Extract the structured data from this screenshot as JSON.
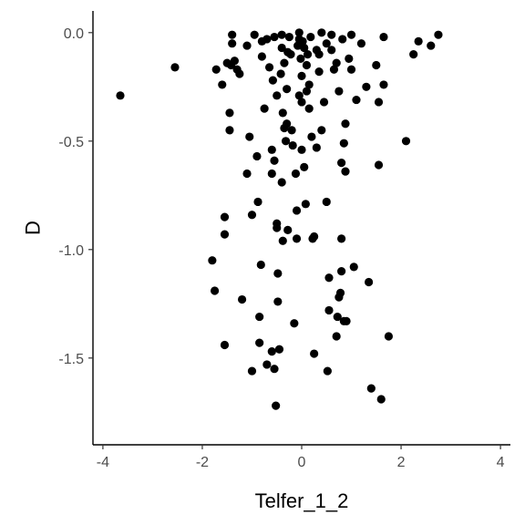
{
  "chart_data": {
    "type": "scatter",
    "title": "",
    "xlabel": "Telfer_1_2",
    "ylabel": "D",
    "xlim": [
      -4.2,
      4.2
    ],
    "ylim": [
      -1.9,
      0.1
    ],
    "xticks": [
      -4,
      -2,
      0,
      2,
      4
    ],
    "xtick_labels": [
      "-4",
      "-2",
      "0",
      "2",
      "4"
    ],
    "yticks": [
      0.0,
      -0.5,
      -1.0,
      -1.5
    ],
    "ytick_labels": [
      "0.0",
      "-0.5",
      "-1.0",
      "-1.5"
    ],
    "grid": false,
    "point_color": "#000000",
    "points": [
      [
        -3.65,
        -0.29
      ],
      [
        -2.55,
        -0.16
      ],
      [
        -1.8,
        -1.05
      ],
      [
        -1.75,
        -1.19
      ],
      [
        -1.72,
        -0.17
      ],
      [
        -1.6,
        -0.24
      ],
      [
        -1.55,
        -1.44
      ],
      [
        -1.55,
        -0.85
      ],
      [
        -1.55,
        -0.93
      ],
      [
        -1.5,
        -0.14
      ],
      [
        -1.45,
        -0.37
      ],
      [
        -1.45,
        -0.45
      ],
      [
        -1.42,
        -0.15
      ],
      [
        -1.4,
        -0.01
      ],
      [
        -1.4,
        -0.05
      ],
      [
        -1.35,
        -0.13
      ],
      [
        -1.3,
        -0.17
      ],
      [
        -1.25,
        -0.19
      ],
      [
        -1.2,
        -1.23
      ],
      [
        -1.1,
        -0.06
      ],
      [
        -1.1,
        -0.65
      ],
      [
        -1.05,
        -0.48
      ],
      [
        -1.0,
        -1.56
      ],
      [
        -1.0,
        -0.84
      ],
      [
        -0.95,
        -0.01
      ],
      [
        -0.9,
        -0.57
      ],
      [
        -0.88,
        -0.78
      ],
      [
        -0.85,
        -1.43
      ],
      [
        -0.85,
        -1.31
      ],
      [
        -0.82,
        -1.07
      ],
      [
        -0.8,
        -0.04
      ],
      [
        -0.8,
        -0.11
      ],
      [
        -0.75,
        -0.35
      ],
      [
        -0.7,
        -1.53
      ],
      [
        -0.7,
        -0.03
      ],
      [
        -0.65,
        -0.16
      ],
      [
        -0.6,
        -1.47
      ],
      [
        -0.6,
        -0.54
      ],
      [
        -0.6,
        -0.65
      ],
      [
        -0.58,
        -0.22
      ],
      [
        -0.55,
        -0.59
      ],
      [
        -0.55,
        -0.02
      ],
      [
        -0.55,
        -1.55
      ],
      [
        -0.52,
        -1.72
      ],
      [
        -0.5,
        -0.9
      ],
      [
        -0.5,
        -0.88
      ],
      [
        -0.5,
        -0.29
      ],
      [
        -0.48,
        -1.11
      ],
      [
        -0.48,
        -1.24
      ],
      [
        -0.45,
        -1.46
      ],
      [
        -0.42,
        -0.19
      ],
      [
        -0.4,
        -0.01
      ],
      [
        -0.4,
        -0.07
      ],
      [
        -0.4,
        -0.69
      ],
      [
        -0.38,
        -0.96
      ],
      [
        -0.38,
        -0.37
      ],
      [
        -0.35,
        -0.14
      ],
      [
        -0.35,
        -0.44
      ],
      [
        -0.32,
        -0.5
      ],
      [
        -0.3,
        -0.42
      ],
      [
        -0.3,
        -0.26
      ],
      [
        -0.28,
        -0.91
      ],
      [
        -0.28,
        -0.09
      ],
      [
        -0.25,
        -0.02
      ],
      [
        -0.22,
        -0.1
      ],
      [
        -0.2,
        -0.45
      ],
      [
        -0.18,
        -0.52
      ],
      [
        -0.15,
        -1.34
      ],
      [
        -0.12,
        -0.65
      ],
      [
        -0.1,
        -0.82
      ],
      [
        -0.1,
        -0.95
      ],
      [
        -0.08,
        -0.06
      ],
      [
        -0.05,
        -0.03
      ],
      [
        -0.05,
        -0.29
      ],
      [
        -0.05,
        0.0
      ],
      [
        -0.02,
        -0.12
      ],
      [
        0.0,
        -0.32
      ],
      [
        0.0,
        -0.54
      ],
      [
        0.0,
        -0.2
      ],
      [
        0.02,
        -0.04
      ],
      [
        0.05,
        -0.62
      ],
      [
        0.05,
        -0.07
      ],
      [
        0.08,
        -0.79
      ],
      [
        0.1,
        -0.27
      ],
      [
        0.1,
        -0.15
      ],
      [
        0.12,
        -0.1
      ],
      [
        0.15,
        -0.24
      ],
      [
        0.15,
        -0.35
      ],
      [
        0.18,
        -0.02
      ],
      [
        0.2,
        -0.48
      ],
      [
        0.22,
        -0.95
      ],
      [
        0.25,
        -1.48
      ],
      [
        0.25,
        -0.94
      ],
      [
        0.3,
        -0.53
      ],
      [
        0.3,
        -0.08
      ],
      [
        0.35,
        -0.18
      ],
      [
        0.35,
        -0.1
      ],
      [
        0.4,
        0.0
      ],
      [
        0.4,
        -0.45
      ],
      [
        0.45,
        -0.32
      ],
      [
        0.5,
        -0.78
      ],
      [
        0.5,
        -0.05
      ],
      [
        0.52,
        -1.56
      ],
      [
        0.55,
        -1.28
      ],
      [
        0.55,
        -1.13
      ],
      [
        0.6,
        -0.08
      ],
      [
        0.6,
        -0.01
      ],
      [
        0.65,
        -0.17
      ],
      [
        0.7,
        -0.14
      ],
      [
        0.7,
        -1.4
      ],
      [
        0.72,
        -1.31
      ],
      [
        0.75,
        -0.27
      ],
      [
        0.75,
        -1.22
      ],
      [
        0.78,
        -1.2
      ],
      [
        0.8,
        -1.1
      ],
      [
        0.8,
        -0.6
      ],
      [
        0.8,
        -0.95
      ],
      [
        0.82,
        -0.03
      ],
      [
        0.85,
        -0.51
      ],
      [
        0.85,
        -1.33
      ],
      [
        0.88,
        -0.42
      ],
      [
        0.88,
        -0.64
      ],
      [
        0.9,
        -1.33
      ],
      [
        0.95,
        -0.12
      ],
      [
        1.0,
        -0.17
      ],
      [
        1.0,
        -0.01
      ],
      [
        1.05,
        -1.08
      ],
      [
        1.1,
        -0.31
      ],
      [
        1.2,
        -0.05
      ],
      [
        1.3,
        -0.25
      ],
      [
        1.35,
        -1.15
      ],
      [
        1.4,
        -1.64
      ],
      [
        1.5,
        -0.15
      ],
      [
        1.55,
        -0.32
      ],
      [
        1.55,
        -0.61
      ],
      [
        1.6,
        -1.69
      ],
      [
        1.65,
        -0.02
      ],
      [
        1.65,
        -0.24
      ],
      [
        1.75,
        -1.4
      ],
      [
        2.1,
        -0.5
      ],
      [
        2.25,
        -0.1
      ],
      [
        2.35,
        -0.04
      ],
      [
        2.6,
        -0.06
      ],
      [
        2.75,
        -0.01
      ]
    ]
  }
}
